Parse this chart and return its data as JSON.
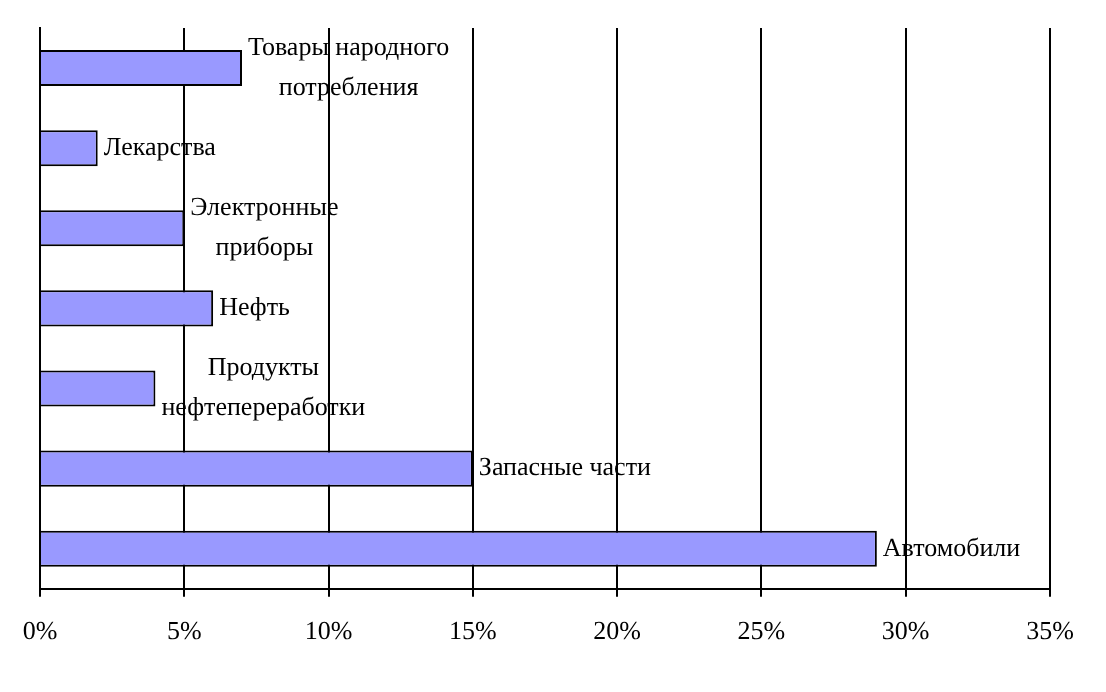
{
  "chart_data": {
    "type": "bar",
    "orientation": "horizontal",
    "categories": [
      "Товары народного потребления",
      "Лекарства",
      "Электронные приборы",
      "Нефть",
      "Продукты нефтепереработки",
      "Запасные части",
      "Автомобили"
    ],
    "values": [
      7,
      2,
      5,
      6,
      4,
      15,
      29
    ],
    "color": "#9999ff",
    "xlim": [
      0,
      35
    ],
    "xticks": [
      {
        "value": 0,
        "label": "0%"
      },
      {
        "value": 5,
        "label": "5%"
      },
      {
        "value": 10,
        "label": "10%"
      },
      {
        "value": 15,
        "label": "15%"
      },
      {
        "value": 20,
        "label": "20%"
      },
      {
        "value": 25,
        "label": "25%"
      },
      {
        "value": 30,
        "label": "30%"
      },
      {
        "value": 35,
        "label": "35%"
      }
    ],
    "grid": "x",
    "tick_labels": "x",
    "legend": false
  }
}
